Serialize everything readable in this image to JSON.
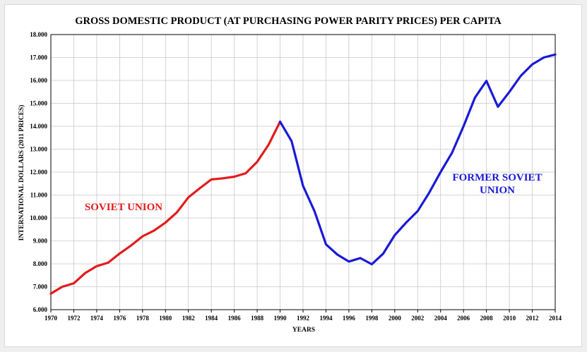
{
  "chart_data": {
    "type": "line",
    "title": "GROSS DOMESTIC PRODUCT (AT PURCHASING POWER PARITY PRICES) PER CAPITA",
    "xlabel": "YEARS",
    "ylabel": "INTERNATIONAL DOLLARS (2011 PRICES)",
    "xlim": [
      1970,
      2014
    ],
    "ylim": [
      6000,
      18000
    ],
    "x_ticks": [
      "1970",
      "1972",
      "1974",
      "1976",
      "1978",
      "1980",
      "1982",
      "1984",
      "1986",
      "1988",
      "1990",
      "1992",
      "1994",
      "1996",
      "1998",
      "2000",
      "2002",
      "2004",
      "2006",
      "2008",
      "2010",
      "2012",
      "2014"
    ],
    "y_ticks": [
      "6.000",
      "7.000",
      "8.000",
      "9.000",
      "10.000",
      "11.000",
      "12.000",
      "13.000",
      "14.000",
      "15.000",
      "16.000",
      "17.000",
      "18.000"
    ],
    "grid": true,
    "series": [
      {
        "name": "SOVIET UNION",
        "color": "#e31b1b",
        "x": [
          1970,
          1971,
          1972,
          1973,
          1974,
          1975,
          1976,
          1977,
          1978,
          1979,
          1980,
          1981,
          1982,
          1983,
          1984,
          1985,
          1986,
          1987,
          1988,
          1989,
          1990
        ],
        "values": [
          6700,
          7000,
          7150,
          7600,
          7900,
          8050,
          8450,
          8800,
          9200,
          9450,
          9800,
          10250,
          10900,
          11300,
          11680,
          11730,
          11800,
          11950,
          12450,
          13200,
          14200
        ]
      },
      {
        "name": "FORMER SOVIET UNION",
        "label_lines": [
          "FORMER SOVIET",
          "UNION"
        ],
        "color": "#1a1ad6",
        "x": [
          1990,
          1991,
          1992,
          1993,
          1994,
          1995,
          1996,
          1997,
          1998,
          1999,
          2000,
          2001,
          2002,
          2003,
          2004,
          2005,
          2006,
          2007,
          2008,
          2009,
          2010,
          2011,
          2012,
          2013,
          2014
        ],
        "values": [
          14200,
          13350,
          11400,
          10300,
          8850,
          8400,
          8100,
          8250,
          7980,
          8450,
          9250,
          9800,
          10300,
          11100,
          12000,
          12850,
          14000,
          15250,
          15980,
          14850,
          15500,
          16200,
          16700,
          17000,
          17130
        ]
      }
    ]
  }
}
